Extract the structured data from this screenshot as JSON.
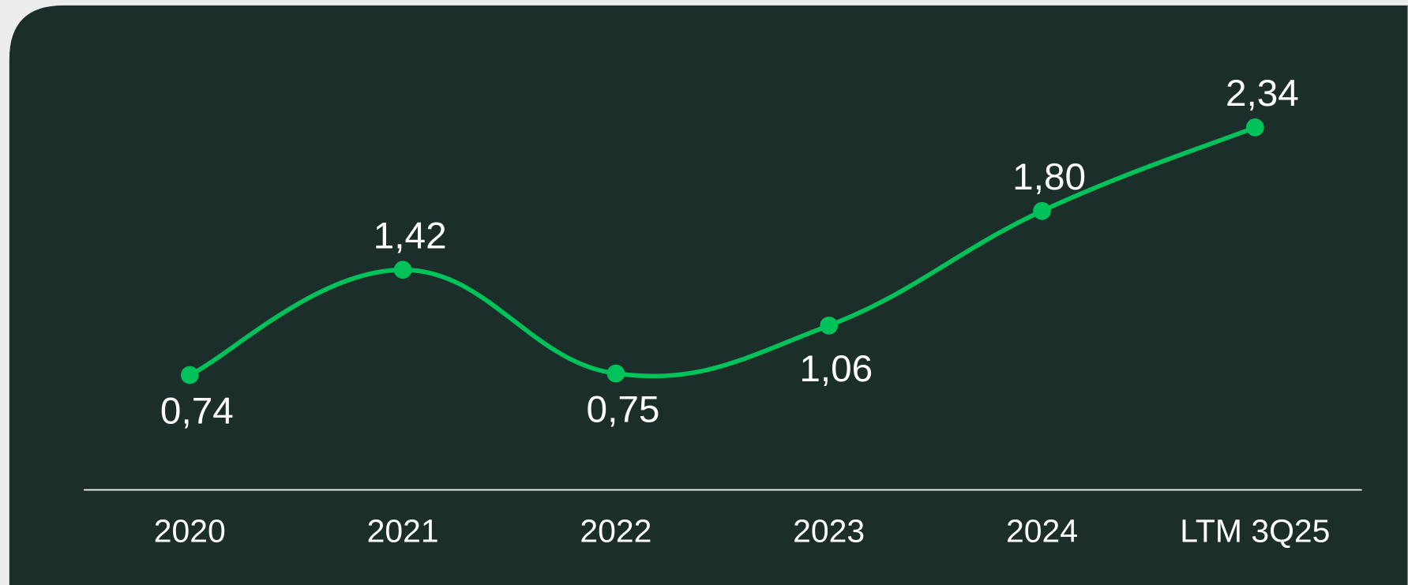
{
  "chart_data": {
    "type": "line",
    "categories": [
      "2020",
      "2021",
      "2022",
      "2023",
      "2024",
      "LTM 3Q25"
    ],
    "values": [
      0.74,
      1.42,
      0.75,
      1.06,
      1.8,
      2.34
    ],
    "value_labels": [
      "0,74",
      "1,42",
      "0,75",
      "1,06",
      "1,80",
      "2,34"
    ],
    "color": "#00c25a"
  }
}
